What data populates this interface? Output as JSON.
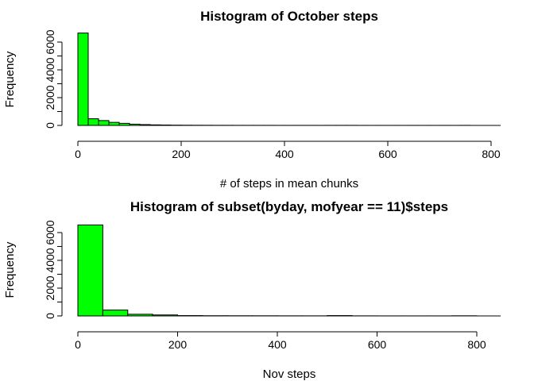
{
  "chart_data": [
    {
      "type": "bar",
      "title": "Histogram of October steps",
      "xlabel": "# of steps in mean chunks",
      "ylabel": "Frequency",
      "xlim": [
        0,
        820
      ],
      "ylim": [
        0,
        6700
      ],
      "bin_width": 20,
      "bins_start": [
        0,
        20,
        40,
        60,
        80,
        100,
        120,
        140,
        160,
        180,
        200,
        220,
        240,
        260,
        280,
        300,
        320,
        340,
        360,
        380,
        400,
        420,
        440,
        460,
        480,
        500,
        520,
        540,
        560,
        580,
        600,
        620,
        640,
        660,
        680,
        700,
        720,
        740
      ],
      "values": [
        6650,
        480,
        350,
        220,
        150,
        90,
        60,
        40,
        30,
        20,
        15,
        12,
        10,
        8,
        8,
        6,
        6,
        5,
        5,
        4,
        4,
        4,
        4,
        4,
        5,
        6,
        5,
        3,
        3,
        3,
        3,
        3,
        3,
        3,
        3,
        3,
        3,
        5
      ],
      "xticks": [
        0,
        200,
        400,
        600,
        800
      ],
      "yticks": [
        0,
        2000,
        4000,
        6000
      ],
      "ytick_labels": [
        "0",
        "2000",
        "",
        "6000"
      ],
      "ytick_labels_minor": [
        "",
        "",
        "4000",
        ""
      ],
      "grid": false,
      "bar_color": "#00ff00"
    },
    {
      "type": "bar",
      "title": "Histogram of subset(byday, mofyear == 11)$steps",
      "xlabel": "Nov steps",
      "ylabel": "Frequency",
      "xlim": [
        0,
        850
      ],
      "ylim": [
        0,
        6700
      ],
      "bin_width": 50,
      "bins_start": [
        0,
        50,
        100,
        150,
        200,
        250,
        300,
        350,
        400,
        450,
        500,
        550,
        600,
        650,
        700,
        750
      ],
      "values": [
        6550,
        420,
        120,
        70,
        25,
        15,
        12,
        10,
        8,
        6,
        25,
        5,
        4,
        4,
        4,
        10
      ],
      "xticks": [
        0,
        200,
        400,
        600,
        800
      ],
      "yticks": [
        0,
        2000,
        4000,
        6000
      ],
      "ytick_labels": [
        "0",
        "2000",
        "",
        "6000"
      ],
      "ytick_labels_minor": [
        "",
        "",
        "4000",
        ""
      ],
      "grid": false,
      "bar_color": "#00ff00"
    }
  ]
}
